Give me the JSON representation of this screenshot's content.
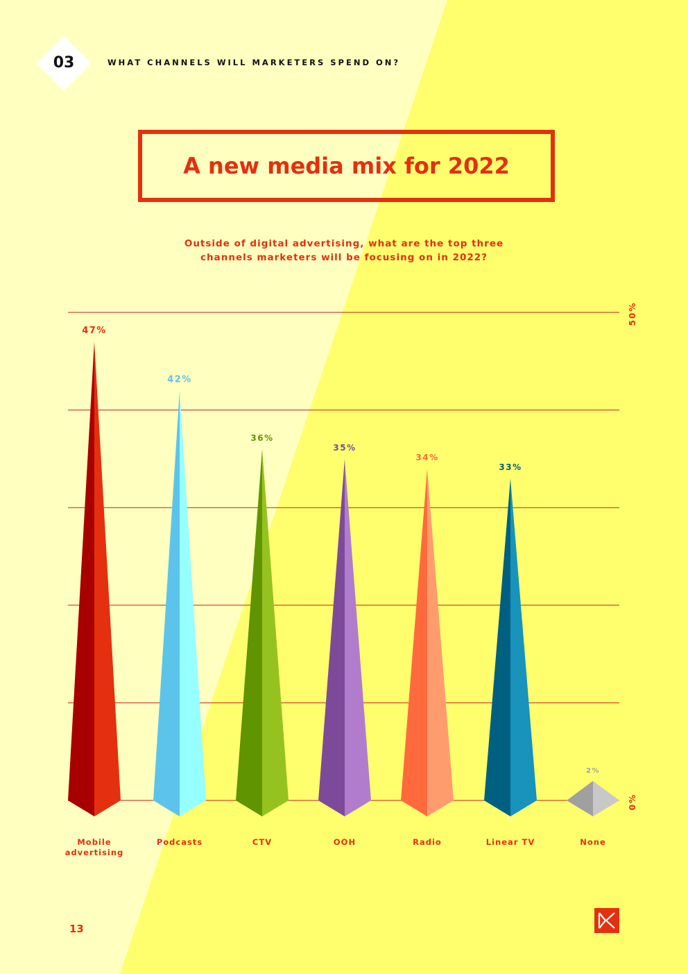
{
  "header": {
    "section_number": "03",
    "section_title": "WHAT CHANNELS WILL MARKETERS SPEND ON?"
  },
  "title": "A new media mix for 2022",
  "question": "Outside of digital advertising, what are the top three channels marketers will be focusing on in 2022?",
  "page_number": "13",
  "colors": {
    "accent": "#e4300f",
    "background": "#ffff6e",
    "background_light": "#ffffc0"
  },
  "chart_data": {
    "type": "bar",
    "title": "",
    "xlabel": "",
    "ylabel": "",
    "ylim": [
      0,
      50
    ],
    "y_tick_labels": [
      "0%",
      "50%"
    ],
    "gridlines": [
      0,
      10,
      20,
      30,
      40,
      50
    ],
    "categories": [
      "Mobile advertising",
      "Podcasts",
      "CTV",
      "OOH",
      "Radio",
      "Linear TV",
      "None"
    ],
    "category_label_lines": [
      [
        "Mobile",
        "advertising"
      ],
      [
        "Podcasts"
      ],
      [
        "CTV"
      ],
      [
        "OOH"
      ],
      [
        "Radio"
      ],
      [
        "Linear TV"
      ],
      [
        "None"
      ]
    ],
    "values": [
      47,
      42,
      36,
      35,
      34,
      33,
      2
    ],
    "value_labels": [
      "47%",
      "42%",
      "36%",
      "35%",
      "34%",
      "33%",
      "2%"
    ],
    "bar_colors": [
      {
        "dark": "#a80000",
        "light": "#e4300f",
        "label": "#e4300f"
      },
      {
        "dark": "#5cc4ea",
        "light": "#96ffff",
        "label": "#5cc4ea"
      },
      {
        "dark": "#609400",
        "light": "#96c21f",
        "label": "#609400"
      },
      {
        "dark": "#7d4a9a",
        "light": "#b27ccc",
        "label": "#7d4a9a"
      },
      {
        "dark": "#ff6a3c",
        "light": "#ff9c6e",
        "label": "#ff6a3c"
      },
      {
        "dark": "#006082",
        "light": "#1893bb",
        "label": "#006082"
      },
      {
        "dark": "#a0a0a0",
        "light": "#c8c8c8",
        "label": "#a0a0a0"
      }
    ],
    "grid": true
  }
}
